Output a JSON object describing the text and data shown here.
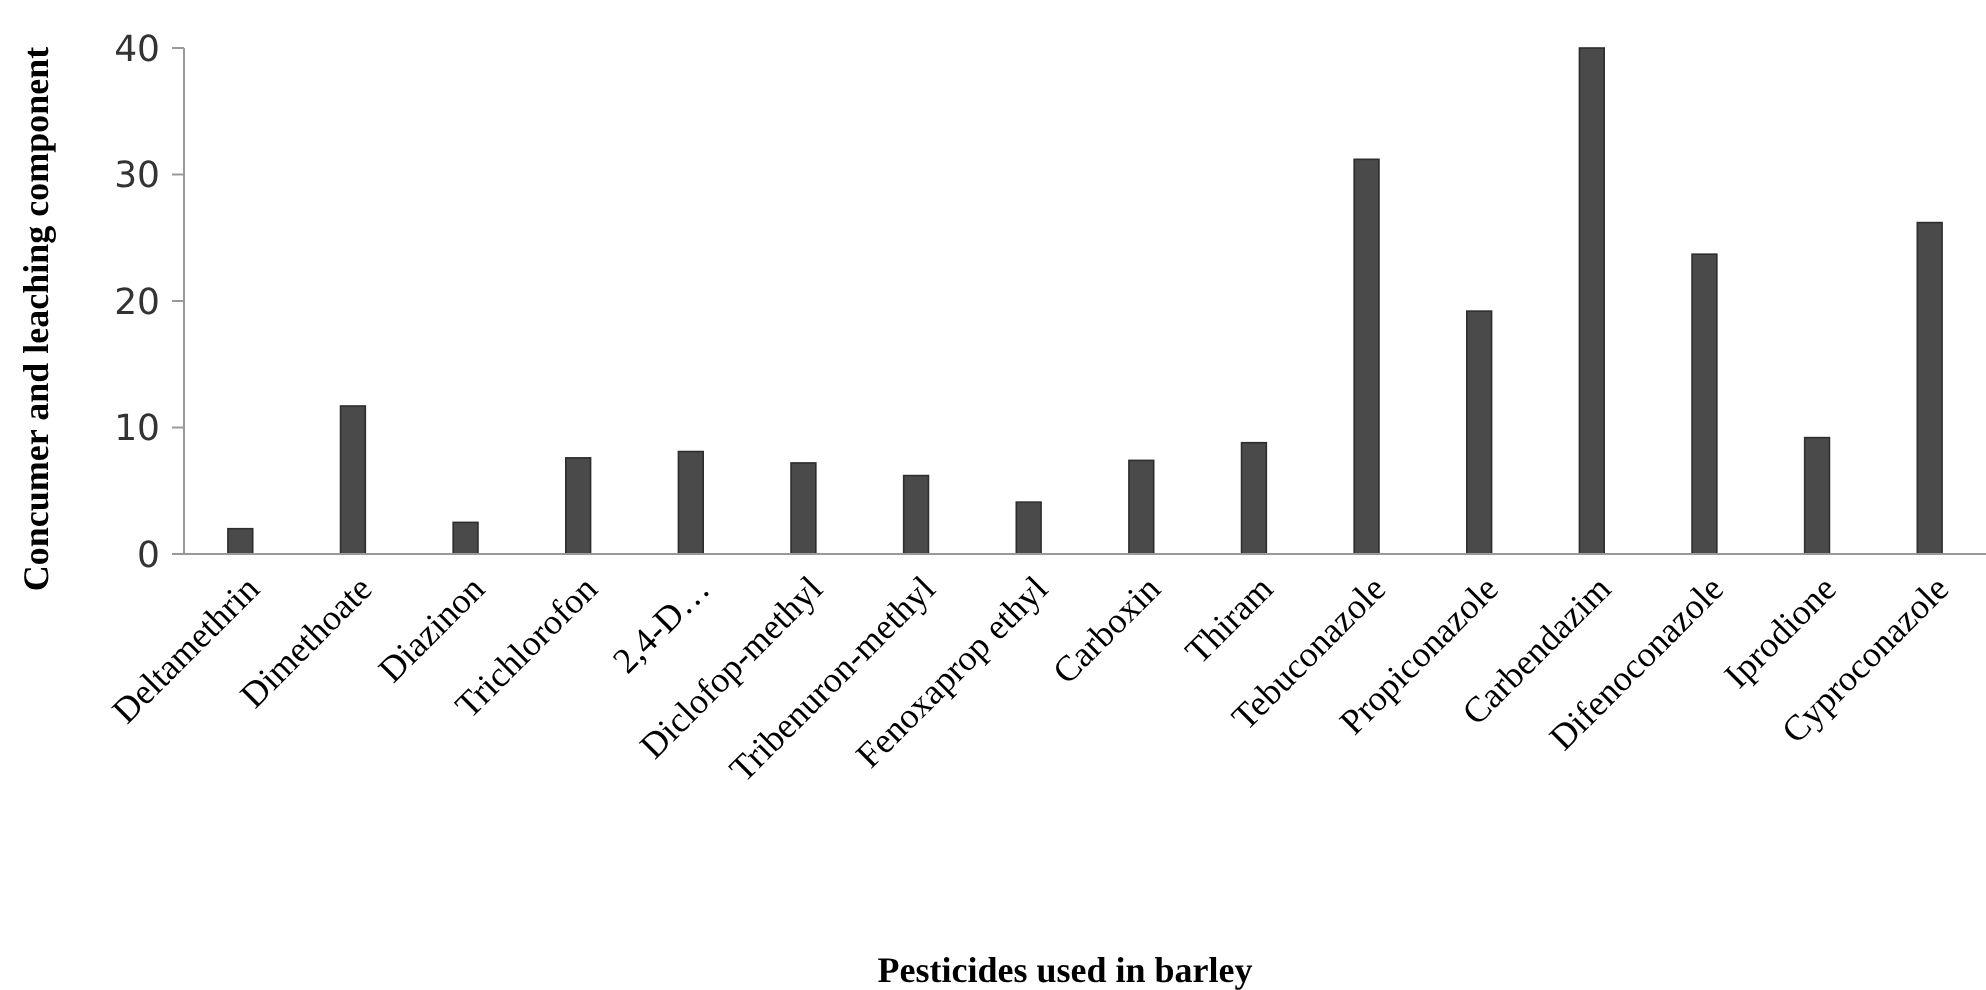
{
  "chart_data": {
    "type": "bar",
    "xlabel": "Pesticides used in barley",
    "ylabel": "Concumer and leaching component",
    "categories": [
      "Deltamethrin",
      "Dimethoate",
      "Diazinon",
      "Trichlorofon",
      "2,4-D…",
      "Diclofop-methyl",
      "Tribenuron-methyl",
      "Fenoxaprop ethyl",
      "Carboxin",
      "Thiram",
      "Tebuconazole",
      "Propiconazole",
      "Carbendazim",
      "Difenoconazole",
      "Iprodione",
      "Cyproconazole"
    ],
    "values": [
      2.0,
      11.7,
      2.5,
      7.6,
      8.1,
      7.2,
      6.2,
      4.1,
      7.4,
      8.8,
      31.2,
      19.2,
      40,
      23.7,
      9.2,
      26.2
    ],
    "color": "#4a4a4a",
    "ylim": [
      0,
      40
    ],
    "yticks": [
      0,
      10,
      20,
      30,
      40
    ],
    "grid": false
  }
}
